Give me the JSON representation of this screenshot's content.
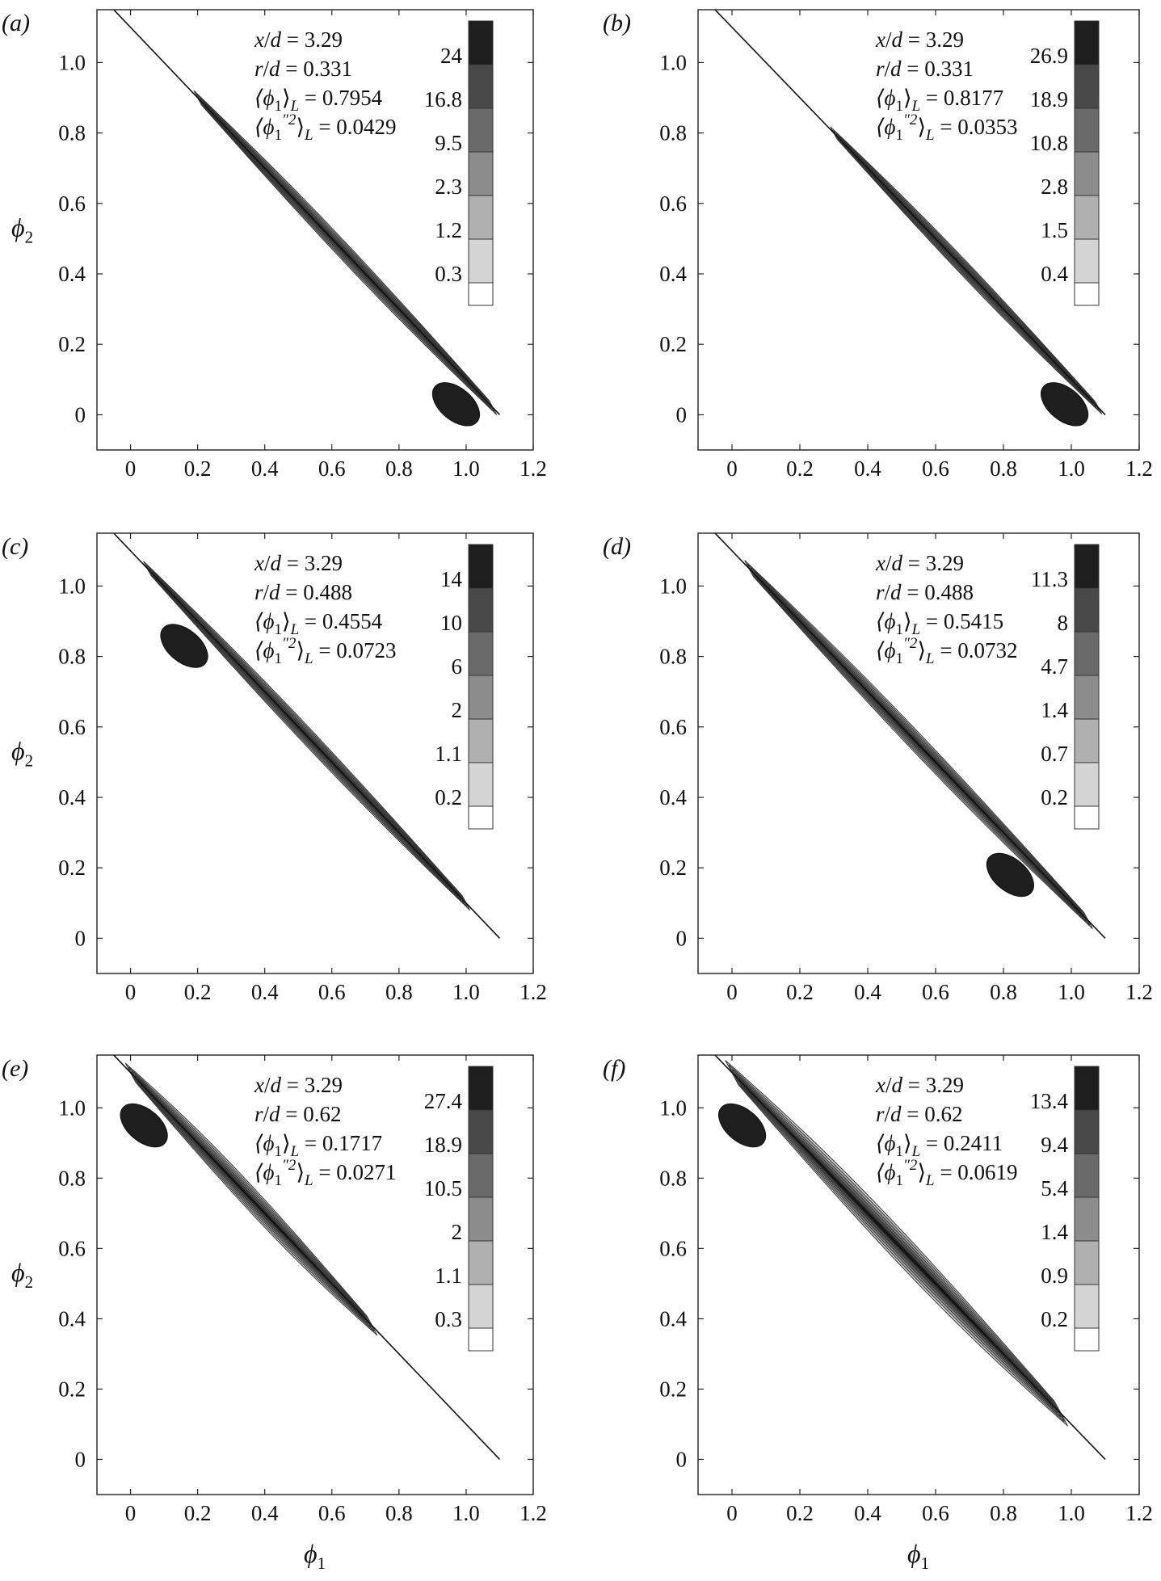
{
  "figure": {
    "colors": {
      "frame": "#222222",
      "levels": [
        "#ffffff",
        "#d4d4d4",
        "#b0b0b0",
        "#8c8c8c",
        "#6a6a6a",
        "#484848",
        "#1e1e1e"
      ]
    },
    "axis_labels": {
      "x_symbol": "ϕ",
      "x_sub": "1",
      "y_symbol": "ϕ",
      "y_sub": "2"
    }
  },
  "chart_data": [
    {
      "panel": "(a)",
      "type": "heatmap",
      "xlim": [
        -0.1,
        1.2
      ],
      "ylim": [
        -0.1,
        1.15
      ],
      "xticks": [
        "0",
        "0.2",
        "0.4",
        "0.6",
        "0.8",
        "1.0",
        "1.2"
      ],
      "yticks": [
        "0",
        "0.2",
        "0.4",
        "0.6",
        "0.8",
        "1.0"
      ],
      "annotations": [
        "x/d = 3.29",
        "r/d = 0.331",
        "⟨ϕ1⟩L = 0.7954",
        "⟨ϕ1″2⟩L = 0.0429"
      ],
      "colorbar_levels": [
        "24",
        "16.8",
        "9.5",
        "2.3",
        "1.2",
        "0.3"
      ],
      "reference_line": {
        "x": [
          -0.1,
          1.1
        ],
        "y": [
          1.2,
          0.0
        ]
      },
      "distribution": {
        "x_start": 0.2,
        "x_end": 1.08,
        "width": 0.15,
        "peak": [
          0.97,
          0.03
        ]
      },
      "show_xlabel": false,
      "show_ylabel": true
    },
    {
      "panel": "(b)",
      "type": "heatmap",
      "xlim": [
        -0.1,
        1.2
      ],
      "ylim": [
        -0.1,
        1.15
      ],
      "xticks": [
        "0",
        "0.2",
        "0.4",
        "0.6",
        "0.8",
        "1.0",
        "1.2"
      ],
      "yticks": [
        "0",
        "0.2",
        "0.4",
        "0.6",
        "0.8",
        "1.0"
      ],
      "annotations": [
        "x/d = 3.29",
        "r/d = 0.331",
        "⟨ϕ1⟩L = 0.8177",
        "⟨ϕ1″2⟩L = 0.0353"
      ],
      "colorbar_levels": [
        "26.9",
        "18.9",
        "10.8",
        "2.8",
        "1.5",
        "0.4"
      ],
      "reference_line": {
        "x": [
          -0.1,
          1.1
        ],
        "y": [
          1.2,
          0.0
        ]
      },
      "distribution": {
        "x_start": 0.3,
        "x_end": 1.08,
        "width": 0.13,
        "peak": [
          0.98,
          0.03
        ]
      },
      "show_xlabel": false,
      "show_ylabel": false
    },
    {
      "panel": "(c)",
      "type": "heatmap",
      "xlim": [
        -0.1,
        1.2
      ],
      "ylim": [
        -0.1,
        1.15
      ],
      "xticks": [
        "0",
        "0.2",
        "0.4",
        "0.6",
        "0.8",
        "1.0",
        "1.2"
      ],
      "yticks": [
        "0",
        "0.2",
        "0.4",
        "0.6",
        "0.8",
        "1.0"
      ],
      "annotations": [
        "x/d = 3.29",
        "r/d = 0.488",
        "⟨ϕ1⟩L = 0.4554",
        "⟨ϕ1″2⟩L = 0.0723"
      ],
      "colorbar_levels": [
        "14",
        "10",
        "6",
        "2",
        "1.1",
        "0.2"
      ],
      "reference_line": {
        "x": [
          -0.1,
          1.1
        ],
        "y": [
          1.2,
          0.0
        ]
      },
      "distribution": {
        "x_start": 0.05,
        "x_end": 1.0,
        "width": 0.15,
        "peak": [
          0.16,
          0.83
        ]
      },
      "show_xlabel": false,
      "show_ylabel": true
    },
    {
      "panel": "(d)",
      "type": "heatmap",
      "xlim": [
        -0.1,
        1.2
      ],
      "ylim": [
        -0.1,
        1.15
      ],
      "xticks": [
        "0",
        "0.2",
        "0.4",
        "0.6",
        "0.8",
        "1.0",
        "1.2"
      ],
      "yticks": [
        "0",
        "0.2",
        "0.4",
        "0.6",
        "0.8",
        "1.0"
      ],
      "annotations": [
        "x/d = 3.29",
        "r/d = 0.488",
        "⟨ϕ1⟩L = 0.5415",
        "⟨ϕ1″2⟩L = 0.0732"
      ],
      "colorbar_levels": [
        "11.3",
        "8",
        "4.7",
        "1.4",
        "0.7",
        "0.2"
      ],
      "reference_line": {
        "x": [
          -0.1,
          1.1
        ],
        "y": [
          1.2,
          0.0
        ]
      },
      "distribution": {
        "x_start": 0.05,
        "x_end": 1.05,
        "width": 0.17,
        "peak": [
          0.82,
          0.18
        ]
      },
      "show_xlabel": false,
      "show_ylabel": false
    },
    {
      "panel": "(e)",
      "type": "heatmap",
      "xlim": [
        -0.1,
        1.2
      ],
      "ylim": [
        -0.1,
        1.15
      ],
      "xticks": [
        "0",
        "0.2",
        "0.4",
        "0.6",
        "0.8",
        "1.0",
        "1.2"
      ],
      "yticks": [
        "0",
        "0.2",
        "0.4",
        "0.6",
        "0.8",
        "1.0"
      ],
      "annotations": [
        "x/d = 3.29",
        "r/d = 0.62",
        "⟨ϕ1⟩L = 0.1717",
        "⟨ϕ1″2⟩L = 0.0271"
      ],
      "colorbar_levels": [
        "27.4",
        "18.9",
        "10.5",
        "2",
        "1.1",
        "0.3"
      ],
      "reference_line": {
        "x": [
          -0.1,
          1.1
        ],
        "y": [
          1.2,
          0.0
        ]
      },
      "distribution": {
        "x_start": 0.0,
        "x_end": 0.72,
        "width": 0.2,
        "peak": [
          0.04,
          0.95
        ]
      },
      "show_xlabel": true,
      "show_ylabel": true
    },
    {
      "panel": "(f)",
      "type": "heatmap",
      "xlim": [
        -0.1,
        1.2
      ],
      "ylim": [
        -0.1,
        1.15
      ],
      "xticks": [
        "0",
        "0.2",
        "0.4",
        "0.6",
        "0.8",
        "1.0",
        "1.2"
      ],
      "yticks": [
        "0",
        "0.2",
        "0.4",
        "0.6",
        "0.8",
        "1.0"
      ],
      "annotations": [
        "x/d = 3.29",
        "r/d = 0.62",
        "⟨ϕ1⟩L = 0.2411",
        "⟨ϕ1″2⟩L = 0.0619"
      ],
      "colorbar_levels": [
        "13.4",
        "9.4",
        "5.4",
        "1.4",
        "0.9",
        "0.2"
      ],
      "reference_line": {
        "x": [
          -0.1,
          1.1
        ],
        "y": [
          1.2,
          0.0
        ]
      },
      "distribution": {
        "x_start": 0.0,
        "x_end": 0.97,
        "width": 0.26,
        "peak": [
          0.03,
          0.95
        ]
      },
      "show_xlabel": true,
      "show_ylabel": false
    }
  ]
}
